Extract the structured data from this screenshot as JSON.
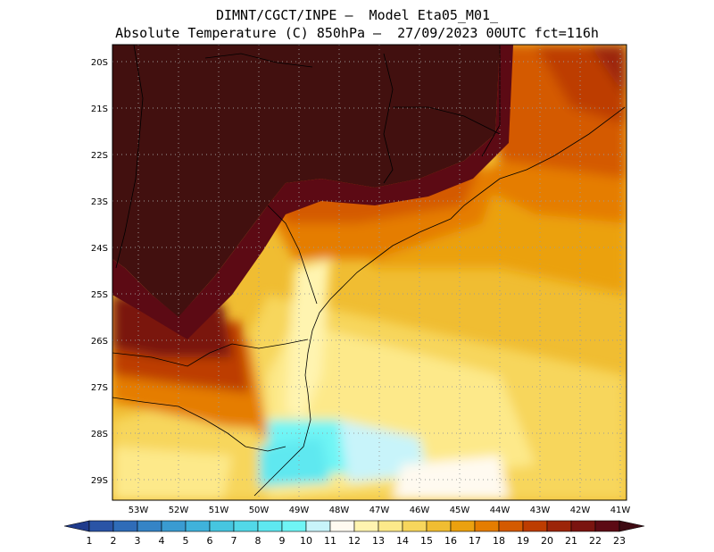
{
  "title": {
    "line1": "DIMNT/CGCT/INPE –  Model Eta05_M01_",
    "line2": "Absolute Temperature (C) 850hPa –  27/09/2023 00UTC fct=116h"
  },
  "axes": {
    "lat_labels": [
      "20S",
      "21S",
      "22S",
      "23S",
      "24S",
      "25S",
      "26S",
      "27S",
      "28S",
      "29S"
    ],
    "lon_labels": [
      "53W",
      "52W",
      "51W",
      "50W",
      "49W",
      "48W",
      "47W",
      "46W",
      "45W",
      "44W",
      "43W",
      "42W",
      "41W"
    ]
  },
  "colorbar": {
    "labels": [
      "1",
      "2",
      "3",
      "4",
      "5",
      "6",
      "7",
      "8",
      "9",
      "10",
      "11",
      "12",
      "13",
      "14",
      "15",
      "16",
      "17",
      "18",
      "19",
      "20",
      "21",
      "22",
      "23"
    ],
    "colors": [
      "#1f3b8c",
      "#2a54a6",
      "#2f6cb8",
      "#3584c6",
      "#3a9bd1",
      "#3fb2db",
      "#46c6e0",
      "#52d8e8",
      "#5ee8f0",
      "#6ff5f5",
      "#c8f4fa",
      "#fffaf0",
      "#fff4b0",
      "#fde98a",
      "#f7d65c",
      "#f0bd32",
      "#eba10f",
      "#e57d00",
      "#d45a00",
      "#bd3d00",
      "#9c2508",
      "#7a1410",
      "#5c0a14",
      "#3e0a12"
    ]
  },
  "colors": {
    "land_dark": "#42100f",
    "ocean_base": "#f6c94a"
  }
}
